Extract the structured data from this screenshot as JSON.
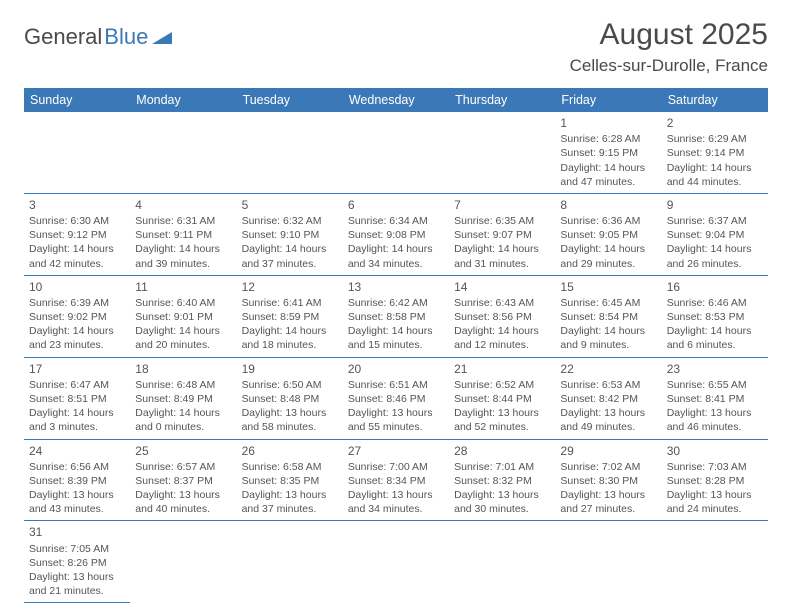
{
  "logo": {
    "general": "General",
    "blue": "Blue"
  },
  "title": "August 2025",
  "location": "Celles-sur-Durolle, France",
  "colors": {
    "brand": "#3b78b8",
    "text": "#4a4a4a",
    "bg": "#ffffff"
  },
  "dayHeaders": [
    "Sunday",
    "Monday",
    "Tuesday",
    "Wednesday",
    "Thursday",
    "Friday",
    "Saturday"
  ],
  "weeks": [
    [
      null,
      null,
      null,
      null,
      null,
      {
        "n": "1",
        "sunrise": "Sunrise: 6:28 AM",
        "sunset": "Sunset: 9:15 PM",
        "daylight1": "Daylight: 14 hours",
        "daylight2": "and 47 minutes."
      },
      {
        "n": "2",
        "sunrise": "Sunrise: 6:29 AM",
        "sunset": "Sunset: 9:14 PM",
        "daylight1": "Daylight: 14 hours",
        "daylight2": "and 44 minutes."
      }
    ],
    [
      {
        "n": "3",
        "sunrise": "Sunrise: 6:30 AM",
        "sunset": "Sunset: 9:12 PM",
        "daylight1": "Daylight: 14 hours",
        "daylight2": "and 42 minutes."
      },
      {
        "n": "4",
        "sunrise": "Sunrise: 6:31 AM",
        "sunset": "Sunset: 9:11 PM",
        "daylight1": "Daylight: 14 hours",
        "daylight2": "and 39 minutes."
      },
      {
        "n": "5",
        "sunrise": "Sunrise: 6:32 AM",
        "sunset": "Sunset: 9:10 PM",
        "daylight1": "Daylight: 14 hours",
        "daylight2": "and 37 minutes."
      },
      {
        "n": "6",
        "sunrise": "Sunrise: 6:34 AM",
        "sunset": "Sunset: 9:08 PM",
        "daylight1": "Daylight: 14 hours",
        "daylight2": "and 34 minutes."
      },
      {
        "n": "7",
        "sunrise": "Sunrise: 6:35 AM",
        "sunset": "Sunset: 9:07 PM",
        "daylight1": "Daylight: 14 hours",
        "daylight2": "and 31 minutes."
      },
      {
        "n": "8",
        "sunrise": "Sunrise: 6:36 AM",
        "sunset": "Sunset: 9:05 PM",
        "daylight1": "Daylight: 14 hours",
        "daylight2": "and 29 minutes."
      },
      {
        "n": "9",
        "sunrise": "Sunrise: 6:37 AM",
        "sunset": "Sunset: 9:04 PM",
        "daylight1": "Daylight: 14 hours",
        "daylight2": "and 26 minutes."
      }
    ],
    [
      {
        "n": "10",
        "sunrise": "Sunrise: 6:39 AM",
        "sunset": "Sunset: 9:02 PM",
        "daylight1": "Daylight: 14 hours",
        "daylight2": "and 23 minutes."
      },
      {
        "n": "11",
        "sunrise": "Sunrise: 6:40 AM",
        "sunset": "Sunset: 9:01 PM",
        "daylight1": "Daylight: 14 hours",
        "daylight2": "and 20 minutes."
      },
      {
        "n": "12",
        "sunrise": "Sunrise: 6:41 AM",
        "sunset": "Sunset: 8:59 PM",
        "daylight1": "Daylight: 14 hours",
        "daylight2": "and 18 minutes."
      },
      {
        "n": "13",
        "sunrise": "Sunrise: 6:42 AM",
        "sunset": "Sunset: 8:58 PM",
        "daylight1": "Daylight: 14 hours",
        "daylight2": "and 15 minutes."
      },
      {
        "n": "14",
        "sunrise": "Sunrise: 6:43 AM",
        "sunset": "Sunset: 8:56 PM",
        "daylight1": "Daylight: 14 hours",
        "daylight2": "and 12 minutes."
      },
      {
        "n": "15",
        "sunrise": "Sunrise: 6:45 AM",
        "sunset": "Sunset: 8:54 PM",
        "daylight1": "Daylight: 14 hours",
        "daylight2": "and 9 minutes."
      },
      {
        "n": "16",
        "sunrise": "Sunrise: 6:46 AM",
        "sunset": "Sunset: 8:53 PM",
        "daylight1": "Daylight: 14 hours",
        "daylight2": "and 6 minutes."
      }
    ],
    [
      {
        "n": "17",
        "sunrise": "Sunrise: 6:47 AM",
        "sunset": "Sunset: 8:51 PM",
        "daylight1": "Daylight: 14 hours",
        "daylight2": "and 3 minutes."
      },
      {
        "n": "18",
        "sunrise": "Sunrise: 6:48 AM",
        "sunset": "Sunset: 8:49 PM",
        "daylight1": "Daylight: 14 hours",
        "daylight2": "and 0 minutes."
      },
      {
        "n": "19",
        "sunrise": "Sunrise: 6:50 AM",
        "sunset": "Sunset: 8:48 PM",
        "daylight1": "Daylight: 13 hours",
        "daylight2": "and 58 minutes."
      },
      {
        "n": "20",
        "sunrise": "Sunrise: 6:51 AM",
        "sunset": "Sunset: 8:46 PM",
        "daylight1": "Daylight: 13 hours",
        "daylight2": "and 55 minutes."
      },
      {
        "n": "21",
        "sunrise": "Sunrise: 6:52 AM",
        "sunset": "Sunset: 8:44 PM",
        "daylight1": "Daylight: 13 hours",
        "daylight2": "and 52 minutes."
      },
      {
        "n": "22",
        "sunrise": "Sunrise: 6:53 AM",
        "sunset": "Sunset: 8:42 PM",
        "daylight1": "Daylight: 13 hours",
        "daylight2": "and 49 minutes."
      },
      {
        "n": "23",
        "sunrise": "Sunrise: 6:55 AM",
        "sunset": "Sunset: 8:41 PM",
        "daylight1": "Daylight: 13 hours",
        "daylight2": "and 46 minutes."
      }
    ],
    [
      {
        "n": "24",
        "sunrise": "Sunrise: 6:56 AM",
        "sunset": "Sunset: 8:39 PM",
        "daylight1": "Daylight: 13 hours",
        "daylight2": "and 43 minutes."
      },
      {
        "n": "25",
        "sunrise": "Sunrise: 6:57 AM",
        "sunset": "Sunset: 8:37 PM",
        "daylight1": "Daylight: 13 hours",
        "daylight2": "and 40 minutes."
      },
      {
        "n": "26",
        "sunrise": "Sunrise: 6:58 AM",
        "sunset": "Sunset: 8:35 PM",
        "daylight1": "Daylight: 13 hours",
        "daylight2": "and 37 minutes."
      },
      {
        "n": "27",
        "sunrise": "Sunrise: 7:00 AM",
        "sunset": "Sunset: 8:34 PM",
        "daylight1": "Daylight: 13 hours",
        "daylight2": "and 34 minutes."
      },
      {
        "n": "28",
        "sunrise": "Sunrise: 7:01 AM",
        "sunset": "Sunset: 8:32 PM",
        "daylight1": "Daylight: 13 hours",
        "daylight2": "and 30 minutes."
      },
      {
        "n": "29",
        "sunrise": "Sunrise: 7:02 AM",
        "sunset": "Sunset: 8:30 PM",
        "daylight1": "Daylight: 13 hours",
        "daylight2": "and 27 minutes."
      },
      {
        "n": "30",
        "sunrise": "Sunrise: 7:03 AM",
        "sunset": "Sunset: 8:28 PM",
        "daylight1": "Daylight: 13 hours",
        "daylight2": "and 24 minutes."
      }
    ],
    [
      {
        "n": "31",
        "sunrise": "Sunrise: 7:05 AM",
        "sunset": "Sunset: 8:26 PM",
        "daylight1": "Daylight: 13 hours",
        "daylight2": "and 21 minutes."
      },
      null,
      null,
      null,
      null,
      null,
      null
    ]
  ]
}
